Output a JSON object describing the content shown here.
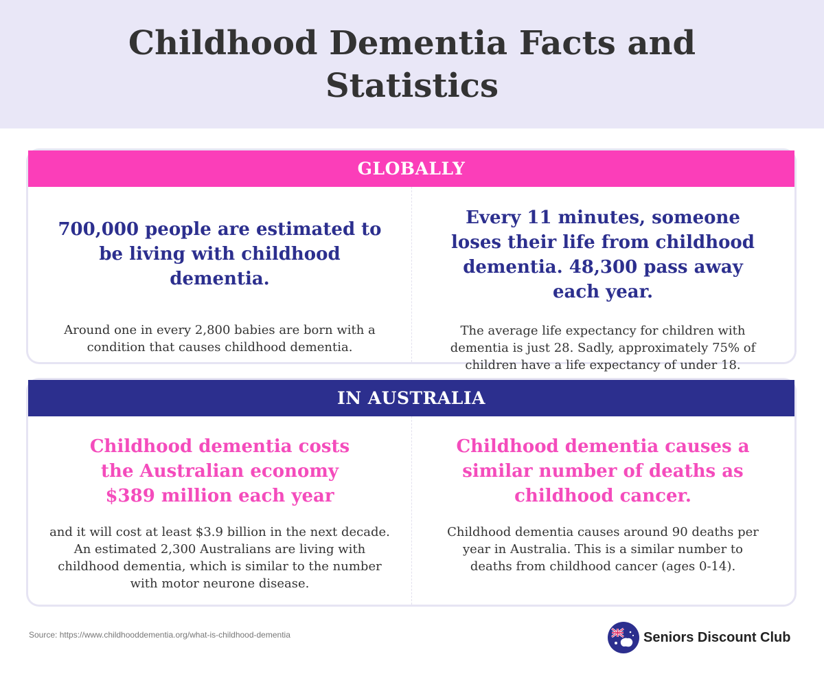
{
  "header": {
    "title": "Childhood Dementia Facts and Statistics"
  },
  "global": {
    "label": "GLOBALLY",
    "left": {
      "headline": "700,000 people are estimated to be living with childhood dementia.",
      "body": "Around one in every 2,800 babies are born with a condition that causes childhood dementia."
    },
    "right": {
      "headline": "Every 11 minutes, someone loses their life from childhood dementia. 48,300 pass away each year.",
      "body": "The average life expectancy for children with dementia is just 28. Sadly, approximately 75% of children have a life expectancy of under 18."
    }
  },
  "australia": {
    "label": "IN AUSTRALIA",
    "left": {
      "headline": "Childhood dementia costs the Australian economy $389 million each year",
      "body": "and it will cost at least $3.9 billion in the next decade. An estimated 2,300 Australians are living with childhood dementia, which is similar to the number with motor neurone disease."
    },
    "right": {
      "headline": "Childhood dementia causes a similar number of deaths as childhood cancer.",
      "body": "Childhood dementia causes around 90 deaths per year in Australia. This is a similar number to deaths from childhood cancer (ages 0-14)."
    }
  },
  "footer": {
    "source": "Source:  https://www.childhooddementia.org/what-is-childhood-dementia",
    "brand_name": "Seniors Discount Club",
    "brand_icon": "australia-flag-icon"
  },
  "colors": {
    "pink": "#fb3eb9",
    "navy": "#2c2f8e",
    "header_bg": "#e9e7f7"
  }
}
